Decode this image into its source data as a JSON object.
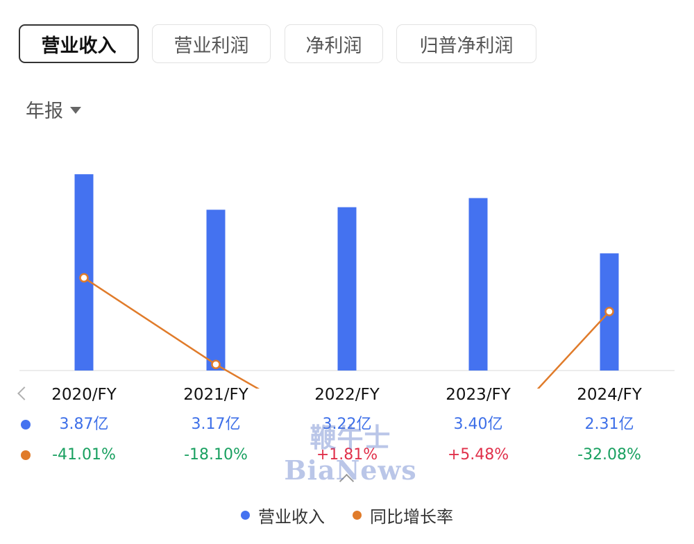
{
  "tabs": [
    {
      "label": "营业收入",
      "active": true
    },
    {
      "label": "营业利润",
      "active": false
    },
    {
      "label": "净利润",
      "active": false
    },
    {
      "label": "归普净利润",
      "active": false
    }
  ],
  "period": {
    "label": "年报"
  },
  "watermark": "鞭牛士 BiaNews",
  "colors": {
    "revenue": "#4472f0",
    "growth": "#e07b2a",
    "positive": "#e0304a",
    "negative": "#19a060"
  },
  "chart_data": {
    "type": "bar",
    "categories": [
      "2020/FY",
      "2021/FY",
      "2022/FY",
      "2023/FY",
      "2024/FY"
    ],
    "series": [
      {
        "name": "营业收入",
        "type": "bar",
        "values": [
          3.87,
          3.17,
          3.22,
          3.4,
          2.31
        ],
        "labels": [
          "3.87亿",
          "3.17亿",
          "3.22亿",
          "3.40亿",
          "2.31亿"
        ]
      },
      {
        "name": "同比增长率",
        "type": "line",
        "values": [
          -41.01,
          -18.1,
          1.81,
          5.48,
          -32.08
        ],
        "labels": [
          "-41.01%",
          "-18.10%",
          "+1.81%",
          "+5.48%",
          "-32.08%"
        ]
      }
    ],
    "legend_position": "bottom-center",
    "grid": false
  }
}
